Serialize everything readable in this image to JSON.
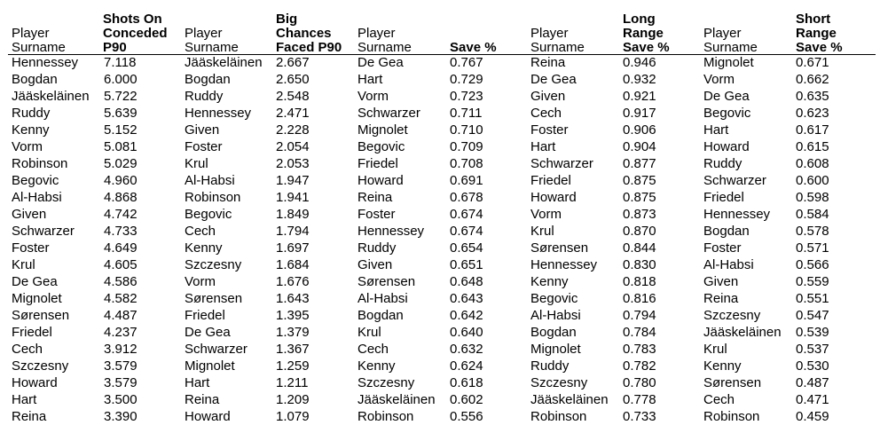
{
  "headers": [
    {
      "player": "Player\nSurname",
      "stat": "Shots On\nConceded\nP90"
    },
    {
      "player": "Player\nSurname",
      "stat": "Big\nChances\nFaced P90"
    },
    {
      "player": "Player\nSurname",
      "stat": "Save %"
    },
    {
      "player": "Player\nSurname",
      "stat": "Long\nRange\nSave %"
    },
    {
      "player": "Player\nSurname",
      "stat": "Short\nRange\nSave %"
    }
  ],
  "tables": [
    [
      [
        "Hennessey",
        "7.118"
      ],
      [
        "Bogdan",
        "6.000"
      ],
      [
        "Jääskeläinen",
        "5.722"
      ],
      [
        "Ruddy",
        "5.639"
      ],
      [
        "Kenny",
        "5.152"
      ],
      [
        "Vorm",
        "5.081"
      ],
      [
        "Robinson",
        "5.029"
      ],
      [
        "Begovic",
        "4.960"
      ],
      [
        "Al-Habsi",
        "4.868"
      ],
      [
        "Given",
        "4.742"
      ],
      [
        "Schwarzer",
        "4.733"
      ],
      [
        "Foster",
        "4.649"
      ],
      [
        "Krul",
        "4.605"
      ],
      [
        "De Gea",
        "4.586"
      ],
      [
        "Mignolet",
        "4.582"
      ],
      [
        "Sørensen",
        "4.487"
      ],
      [
        "Friedel",
        "4.237"
      ],
      [
        "Cech",
        "3.912"
      ],
      [
        "Szczesny",
        "3.579"
      ],
      [
        "Howard",
        "3.579"
      ],
      [
        "Hart",
        "3.500"
      ],
      [
        "Reina",
        "3.390"
      ]
    ],
    [
      [
        "Jääskeläinen",
        "2.667"
      ],
      [
        "Bogdan",
        "2.650"
      ],
      [
        "Ruddy",
        "2.548"
      ],
      [
        "Hennessey",
        "2.471"
      ],
      [
        "Given",
        "2.228"
      ],
      [
        "Foster",
        "2.054"
      ],
      [
        "Krul",
        "2.053"
      ],
      [
        "Al-Habsi",
        "1.947"
      ],
      [
        "Robinson",
        "1.941"
      ],
      [
        "Begovic",
        "1.849"
      ],
      [
        "Cech",
        "1.794"
      ],
      [
        "Kenny",
        "1.697"
      ],
      [
        "Szczesny",
        "1.684"
      ],
      [
        "Vorm",
        "1.676"
      ],
      [
        "Sørensen",
        "1.643"
      ],
      [
        "Friedel",
        "1.395"
      ],
      [
        "De Gea",
        "1.379"
      ],
      [
        "Schwarzer",
        "1.367"
      ],
      [
        "Mignolet",
        "1.259"
      ],
      [
        "Hart",
        "1.211"
      ],
      [
        "Reina",
        "1.209"
      ],
      [
        "Howard",
        "1.079"
      ]
    ],
    [
      [
        "De Gea",
        "0.767"
      ],
      [
        "Hart",
        "0.729"
      ],
      [
        "Vorm",
        "0.723"
      ],
      [
        "Schwarzer",
        "0.711"
      ],
      [
        "Mignolet",
        "0.710"
      ],
      [
        "Begovic",
        "0.709"
      ],
      [
        "Friedel",
        "0.708"
      ],
      [
        "Howard",
        "0.691"
      ],
      [
        "Reina",
        "0.678"
      ],
      [
        "Foster",
        "0.674"
      ],
      [
        "Hennessey",
        "0.674"
      ],
      [
        "Ruddy",
        "0.654"
      ],
      [
        "Given",
        "0.651"
      ],
      [
        "Sørensen",
        "0.648"
      ],
      [
        "Al-Habsi",
        "0.643"
      ],
      [
        "Bogdan",
        "0.642"
      ],
      [
        "Krul",
        "0.640"
      ],
      [
        "Cech",
        "0.632"
      ],
      [
        "Kenny",
        "0.624"
      ],
      [
        "Szczesny",
        "0.618"
      ],
      [
        "Jääskeläinen",
        "0.602"
      ],
      [
        "Robinson",
        "0.556"
      ]
    ],
    [
      [
        "Reina",
        "0.946"
      ],
      [
        "De Gea",
        "0.932"
      ],
      [
        "Given",
        "0.921"
      ],
      [
        "Cech",
        "0.917"
      ],
      [
        "Foster",
        "0.906"
      ],
      [
        "Hart",
        "0.904"
      ],
      [
        "Schwarzer",
        "0.877"
      ],
      [
        "Friedel",
        "0.875"
      ],
      [
        "Howard",
        "0.875"
      ],
      [
        "Vorm",
        "0.873"
      ],
      [
        "Krul",
        "0.870"
      ],
      [
        "Sørensen",
        "0.844"
      ],
      [
        "Hennessey",
        "0.830"
      ],
      [
        "Kenny",
        "0.818"
      ],
      [
        "Begovic",
        "0.816"
      ],
      [
        "Al-Habsi",
        "0.794"
      ],
      [
        "Bogdan",
        "0.784"
      ],
      [
        "Mignolet",
        "0.783"
      ],
      [
        "Ruddy",
        "0.782"
      ],
      [
        "Szczesny",
        "0.780"
      ],
      [
        "Jääskeläinen",
        "0.778"
      ],
      [
        "Robinson",
        "0.733"
      ]
    ],
    [
      [
        "Mignolet",
        "0.671"
      ],
      [
        "Vorm",
        "0.662"
      ],
      [
        "De Gea",
        "0.635"
      ],
      [
        "Begovic",
        "0.623"
      ],
      [
        "Hart",
        "0.617"
      ],
      [
        "Howard",
        "0.615"
      ],
      [
        "Ruddy",
        "0.608"
      ],
      [
        "Schwarzer",
        "0.600"
      ],
      [
        "Friedel",
        "0.598"
      ],
      [
        "Hennessey",
        "0.584"
      ],
      [
        "Bogdan",
        "0.578"
      ],
      [
        "Foster",
        "0.571"
      ],
      [
        "Al-Habsi",
        "0.566"
      ],
      [
        "Given",
        "0.559"
      ],
      [
        "Reina",
        "0.551"
      ],
      [
        "Szczesny",
        "0.547"
      ],
      [
        "Jääskeläinen",
        "0.539"
      ],
      [
        "Krul",
        "0.537"
      ],
      [
        "Kenny",
        "0.530"
      ],
      [
        "Sørensen",
        "0.487"
      ],
      [
        "Cech",
        "0.471"
      ],
      [
        "Robinson",
        "0.459"
      ]
    ]
  ]
}
